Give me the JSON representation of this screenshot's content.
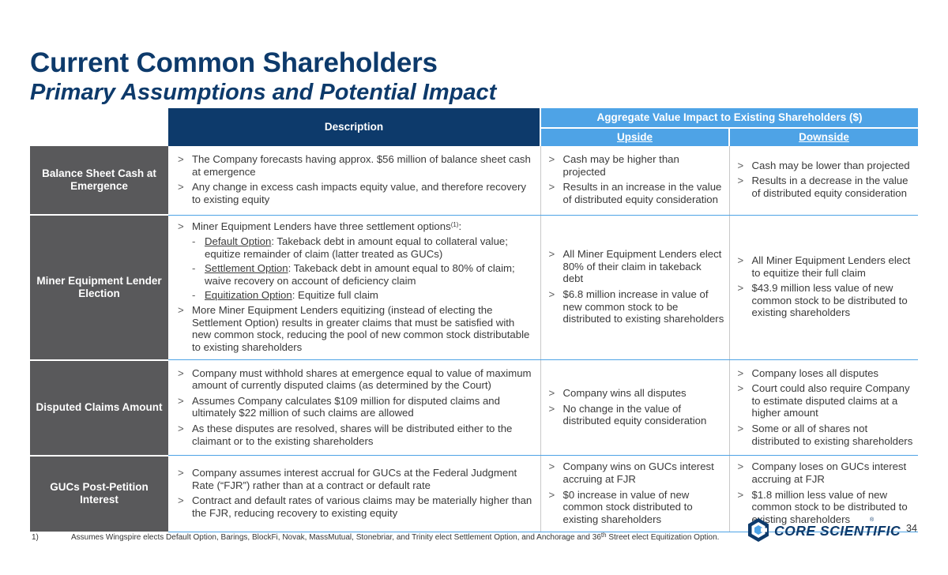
{
  "title": "Current Common Shareholders",
  "subtitle": "Primary Assumptions and Potential Impact",
  "table": {
    "header_description": "Description",
    "header_aggregate": "Aggregate Value Impact to Existing Shareholders ($)",
    "header_upside": "Upside",
    "header_downside": "Downside",
    "rows": [
      {
        "label": "Balance Sheet Cash at Emergence",
        "desc": [
          "The Company forecasts having approx. $56 million of balance sheet cash at emergence",
          "Any change in excess cash impacts equity value, and therefore recovery to existing equity"
        ],
        "upside": [
          "Cash may be higher than projected",
          "Results in an increase in the value of distributed equity consideration"
        ],
        "downside": [
          "Cash may be lower than projected",
          "Results in a decrease in the value of distributed equity consideration"
        ]
      },
      {
        "label": "Miner Equipment Lender Election",
        "desc_intro": "Miner Equipment Lenders have three settlement options",
        "desc_intro_sup": "(1)",
        "desc_intro_tail": ":",
        "options": [
          {
            "name": "Default Option",
            "text": ": Takeback debt in amount equal to collateral value; equitize remainder of claim (latter treated as GUCs)"
          },
          {
            "name": "Settlement Option",
            "text": ": Takeback debt in amount equal to 80% of claim; waive recovery on account of deficiency claim"
          },
          {
            "name": "Equitization Option",
            "text": ": Equitize full claim"
          }
        ],
        "desc_final": "More Miner Equipment Lenders equitizing (instead of electing the Settlement Option) results in greater claims that must be satisfied with new common stock, reducing the pool of new common stock distributable to existing shareholders",
        "upside": [
          "All Miner Equipment Lenders elect 80% of their claim in takeback debt",
          "$6.8 million increase in value of new common stock to be distributed to existing shareholders"
        ],
        "downside": [
          "All Miner Equipment Lenders elect to equitize their full claim",
          "$43.9 million less value of new common stock to be distributed to existing shareholders"
        ]
      },
      {
        "label": "Disputed Claims Amount",
        "desc": [
          "Company must withhold shares at emergence equal to value of maximum amount of currently disputed claims (as determined by the Court)",
          "Assumes Company calculates $109 million for disputed claims and ultimately $22 million of such claims are allowed",
          "As these disputes are resolved, shares will be distributed either to the claimant or to the existing shareholders"
        ],
        "upside": [
          "Company wins all disputes",
          "No change in the value of distributed equity consideration"
        ],
        "downside": [
          "Company loses all disputes",
          "Court could also require Company to estimate disputed claims at a higher amount",
          "Some or all of shares not distributed to existing shareholders"
        ]
      },
      {
        "label": "GUCs Post-Petition Interest",
        "desc": [
          "Company assumes interest accrual for GUCs at the Federal Judgment Rate (“FJR”) rather than at a contract or default rate",
          "Contract and default rates of various claims may be materially higher than the FJR, reducing recovery to existing equity"
        ],
        "upside": [
          "Company wins on GUCs interest accruing at FJR",
          "$0 increase in value of new common stock distributed to existing shareholders"
        ],
        "downside": [
          "Company loses on GUCs interest accruing at FJR",
          "$1.8 million less value of new common stock to be distributed to existing shareholders"
        ]
      }
    ]
  },
  "footnote": {
    "number": "1)",
    "text_before": "Assumes Wingspire elects Default Option, Barings, BlockFi, Novak, MassMutual, Stonebriar, and Trinity elect Settlement Option, and Anchorage and 36",
    "sup": "th",
    "text_after": " Street elect Equitization Option."
  },
  "page_number": "34",
  "logo": {
    "text": "CORE SCIENTIFIC",
    "reg": "®"
  },
  "colors": {
    "navy": "#0d3a6b",
    "blue": "#4ea3e6",
    "gray": "#59595b"
  }
}
